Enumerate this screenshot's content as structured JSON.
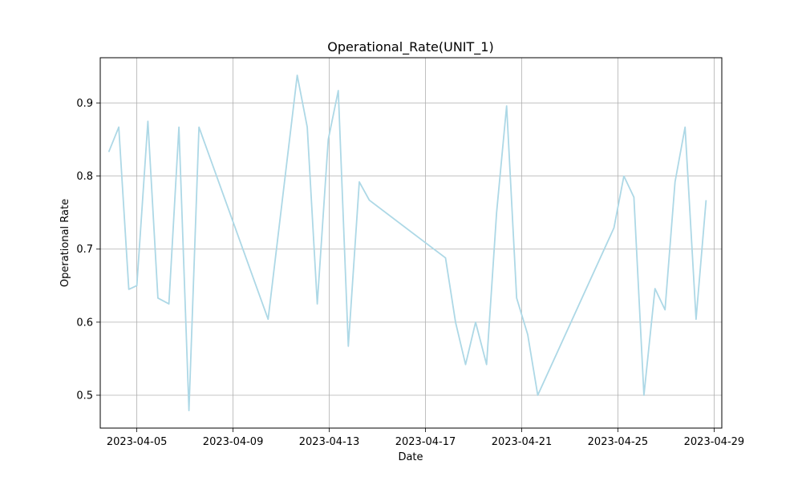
{
  "chart_data": {
    "type": "line",
    "title": "Operational_Rate(UNIT_1)",
    "xlabel": "Date",
    "ylabel": "Operational Rate",
    "x_ticks": [
      "2023-04-05",
      "2023-04-09",
      "2023-04-13",
      "2023-04-17",
      "2023-04-21",
      "2023-04-25",
      "2023-04-29"
    ],
    "y_ticks": [
      "0.5",
      "0.6",
      "0.7",
      "0.8",
      "0.9"
    ],
    "ylim": [
      0.455,
      0.962
    ],
    "xlim": [
      "2023-04-03 11:30",
      "2023-04-29 07:40"
    ],
    "grid": true,
    "line_color": "#add8e6",
    "series": [
      {
        "points": [
          [
            "2023-04-03 20:00",
            0.833
          ],
          [
            "2023-04-04 06:00",
            0.867
          ],
          [
            "2023-04-04 16:00",
            0.645
          ],
          [
            "2023-04-05 00:00",
            0.65
          ],
          [
            "2023-04-05 11:00",
            0.875
          ],
          [
            "2023-04-05 21:00",
            0.633
          ],
          [
            "2023-04-06 08:00",
            0.625
          ],
          [
            "2023-04-06 18:00",
            0.867
          ],
          [
            "2023-04-07 04:00",
            0.479
          ],
          [
            "2023-04-07 14:00",
            0.867
          ],
          [
            "2023-04-10 11:00",
            0.604
          ],
          [
            "2023-04-11 16:00",
            0.938
          ],
          [
            "2023-04-12 02:00",
            0.867
          ],
          [
            "2023-04-12 12:00",
            0.625
          ],
          [
            "2023-04-12 23:00",
            0.85
          ],
          [
            "2023-04-13 09:00",
            0.917
          ],
          [
            "2023-04-13 19:00",
            0.567
          ],
          [
            "2023-04-14 06:00",
            0.792
          ],
          [
            "2023-04-14 16:00",
            0.767
          ],
          [
            "2023-04-17 20:00",
            0.688
          ],
          [
            "2023-04-18 06:00",
            0.6
          ],
          [
            "2023-04-18 16:00",
            0.542
          ],
          [
            "2023-04-19 02:00",
            0.6
          ],
          [
            "2023-04-19 13:00",
            0.542
          ],
          [
            "2023-04-19 23:00",
            0.75
          ],
          [
            "2023-04-20 09:00",
            0.896
          ],
          [
            "2023-04-20 19:00",
            0.633
          ],
          [
            "2023-04-21 06:00",
            0.583
          ],
          [
            "2023-04-21 16:00",
            0.5
          ],
          [
            "2023-04-24 20:00",
            0.729
          ],
          [
            "2023-04-25 06:00",
            0.8
          ],
          [
            "2023-04-25 16:00",
            0.771
          ],
          [
            "2023-04-26 02:00",
            0.5
          ],
          [
            "2023-04-26 13:00",
            0.646
          ],
          [
            "2023-04-26 23:00",
            0.617
          ],
          [
            "2023-04-27 09:00",
            0.792
          ],
          [
            "2023-04-27 19:00",
            0.867
          ],
          [
            "2023-04-28 06:00",
            0.604
          ],
          [
            "2023-04-28 16:00",
            0.767
          ]
        ]
      }
    ]
  }
}
